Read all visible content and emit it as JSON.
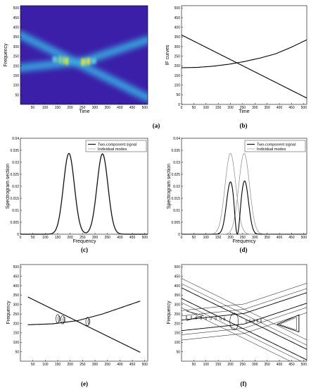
{
  "chart_data": [
    {
      "panel": "a",
      "type": "heatmap",
      "caption": "(a)",
      "xlabel": "Time",
      "ylabel": "Frequency",
      "xlim": [
        1,
        512
      ],
      "ylim": [
        1,
        512
      ],
      "xticks": [
        50,
        100,
        150,
        200,
        250,
        300,
        350,
        400,
        450,
        500
      ],
      "yticks": [
        50,
        100,
        150,
        200,
        250,
        300,
        350,
        400,
        450,
        500
      ],
      "ridges": [
        {
          "x": [
            1,
            512
          ],
          "y": [
            360,
            35
          ]
        },
        {
          "x": [
            1,
            256,
            512
          ],
          "y": [
            190,
            225,
            335
          ]
        }
      ],
      "colors": {
        "background": "#3b1fa8",
        "ridge": "#37b6e6",
        "peak": "#f4e61a"
      }
    },
    {
      "panel": "b",
      "type": "line",
      "caption": "(b)",
      "xlabel": "Time",
      "ylabel": "IF curves",
      "xlim": [
        0,
        512
      ],
      "ylim": [
        0,
        512
      ],
      "xticks": [
        0,
        50,
        100,
        150,
        200,
        250,
        300,
        350,
        400,
        450,
        500
      ],
      "yticks": [
        0,
        50,
        100,
        150,
        200,
        250,
        300,
        350,
        400,
        450,
        500
      ],
      "series": [
        {
          "x": [
            0,
            512
          ],
          "y": [
            360,
            33
          ]
        },
        {
          "x": [
            0,
            64,
            128,
            192,
            256,
            320,
            384,
            448,
            512
          ],
          "y": [
            190,
            192,
            198,
            208,
            222,
            240,
            262,
            296,
            335
          ]
        }
      ]
    },
    {
      "panel": "c",
      "type": "line",
      "caption": "(c)",
      "xlabel": "Frequency",
      "ylabel": "Spectrogram section",
      "xlim": [
        0,
        512
      ],
      "ylim": [
        0,
        0.04
      ],
      "xticks": [
        0,
        50,
        100,
        150,
        200,
        250,
        300,
        350,
        400,
        450,
        500
      ],
      "yticks": [
        0,
        0.005,
        0.01,
        0.015,
        0.02,
        0.025,
        0.03,
        0.035,
        0.04
      ],
      "ytick_labels": [
        "0",
        "0.005",
        "0.01",
        "0.015",
        "0.02",
        "0.025",
        "0.03",
        "0.035",
        "0.04"
      ],
      "legend": [
        "Two-component signal",
        "Individual modes"
      ],
      "legend_position": "top-right",
      "series": [
        {
          "name": "Two-component signal",
          "peaks": [
            {
              "center": 195,
              "height": 0.0337,
              "width": 22
            },
            {
              "center": 330,
              "height": 0.0335,
              "width": 22
            }
          ]
        },
        {
          "name": "Individual modes",
          "peaks": [
            {
              "center": 195,
              "height": 0.0337,
              "width": 22
            },
            {
              "center": 330,
              "height": 0.0335,
              "width": 22
            }
          ]
        }
      ]
    },
    {
      "panel": "d",
      "type": "line",
      "caption": "(d)",
      "xlabel": "Frequency",
      "ylabel": "Spectrogram section",
      "xlim": [
        0,
        512
      ],
      "ylim": [
        0,
        0.04
      ],
      "xticks": [
        0,
        50,
        100,
        150,
        200,
        250,
        300,
        350,
        400,
        450,
        500
      ],
      "yticks": [
        0,
        0.005,
        0.01,
        0.015,
        0.02,
        0.025,
        0.03,
        0.035,
        0.04
      ],
      "ytick_labels": [
        "0",
        "0.005",
        "0.01",
        "0.015",
        "0.02",
        "0.025",
        "0.03",
        "0.035",
        "0.04"
      ],
      "legend": [
        "Two-component signal",
        "Individual modes"
      ],
      "legend_position": "top-right",
      "series": [
        {
          "name": "Two-component signal",
          "peaks": [
            {
              "center": 200,
              "height": 0.0218,
              "width": 16
            },
            {
              "center": 258,
              "height": 0.0222,
              "width": 16
            }
          ],
          "dip_at": 228
        },
        {
          "name": "Individual modes",
          "peaks": [
            {
              "center": 200,
              "height": 0.0337,
              "width": 22
            },
            {
              "center": 256,
              "height": 0.0337,
              "width": 22
            }
          ]
        }
      ],
      "colors": {
        "two_component": "#000000",
        "individual": "#8a8a8a"
      }
    },
    {
      "panel": "e",
      "type": "line",
      "caption": "(e)",
      "xlabel": "",
      "ylabel": "Frequency",
      "xlim": [
        0,
        512
      ],
      "ylim": [
        0,
        512
      ],
      "xticks": [
        50,
        100,
        150,
        200,
        250,
        300,
        350,
        400,
        450,
        500
      ],
      "yticks": [
        50,
        100,
        150,
        200,
        250,
        300,
        350,
        400,
        450,
        500
      ],
      "series": [
        {
          "x": [
            30,
            485
          ],
          "y": [
            340,
            45
          ]
        },
        {
          "x": [
            30,
            130,
            230,
            330,
            485
          ],
          "y": [
            193,
            198,
            215,
            250,
            320
          ]
        }
      ],
      "loops": [
        {
          "x": 150,
          "y": 225
        },
        {
          "x": 170,
          "y": 220
        },
        {
          "x": 270,
          "y": 210
        }
      ]
    },
    {
      "panel": "f",
      "type": "line",
      "caption": "(f)",
      "xlabel": "",
      "ylabel": "Frequency",
      "xlim": [
        0,
        512
      ],
      "ylim": [
        0,
        512
      ],
      "xticks": [
        50,
        100,
        150,
        200,
        250,
        300,
        350,
        400,
        450,
        500
      ],
      "yticks": [
        50,
        100,
        150,
        200,
        250,
        300,
        350,
        400,
        450,
        500
      ],
      "colors": {
        "contour": "#000000"
      }
    }
  ]
}
